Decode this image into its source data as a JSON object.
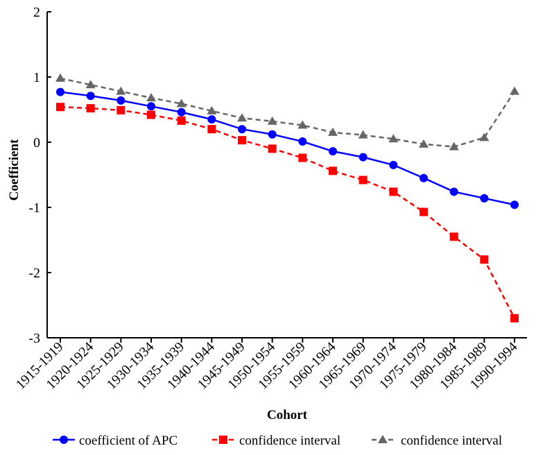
{
  "chart_data": {
    "type": "line",
    "xlabel": "Cohort",
    "ylabel": "Coefficient",
    "ylim": [
      -3,
      2
    ],
    "yticks": [
      2,
      1,
      0,
      -1,
      -2,
      -3
    ],
    "grid": false,
    "legend_position": "bottom",
    "categories": [
      "1915-1919",
      "1920-1924",
      "1925-1929",
      "1930-1934",
      "1935-1939",
      "1940-1944",
      "1945-1949",
      "1950-1954",
      "1955-1959",
      "1960-1964",
      "1965-1969",
      "1970-1974",
      "1975-1979",
      "1980-1984",
      "1985-1989",
      "1990-1994"
    ],
    "series": [
      {
        "name": "coefficient of APC",
        "color": "#0000ff",
        "marker": "circle",
        "line_style": "solid",
        "values": [
          0.77,
          0.71,
          0.64,
          0.55,
          0.46,
          0.35,
          0.2,
          0.12,
          0.01,
          -0.14,
          -0.23,
          -0.35,
          -0.55,
          -0.76,
          -0.86,
          -0.96
        ]
      },
      {
        "name": "confidence interval",
        "color": "#ff0000",
        "marker": "square",
        "line_style": "dashed",
        "values": [
          0.54,
          0.52,
          0.49,
          0.42,
          0.33,
          0.2,
          0.03,
          -0.1,
          -0.24,
          -0.44,
          -0.58,
          -0.76,
          -1.07,
          -1.45,
          -1.8,
          -2.7
        ]
      },
      {
        "name": "confidence interval",
        "color": "#666666",
        "marker": "triangle",
        "line_style": "dashed",
        "values": [
          0.98,
          0.88,
          0.78,
          0.68,
          0.59,
          0.48,
          0.37,
          0.32,
          0.26,
          0.15,
          0.11,
          0.05,
          -0.03,
          -0.07,
          0.07,
          0.78
        ]
      }
    ]
  }
}
